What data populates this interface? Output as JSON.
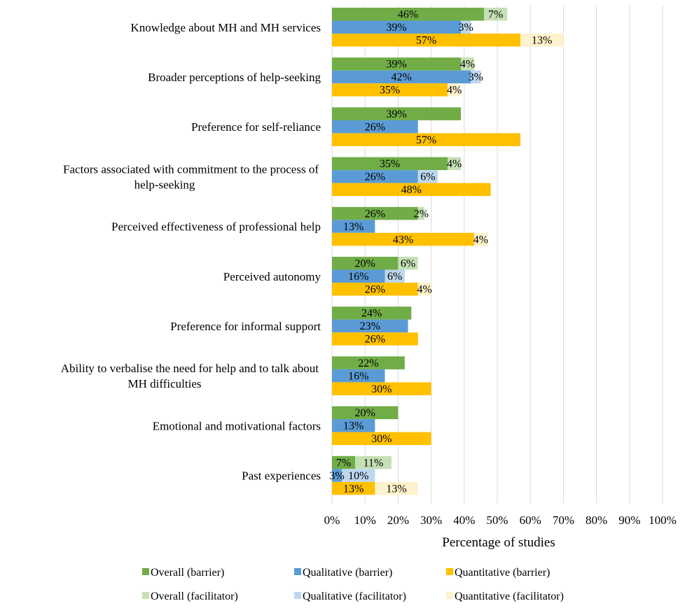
{
  "chart_data": {
    "type": "bar",
    "orientation": "horizontal",
    "stacked_pairs": true,
    "categories": [
      [
        "Knowledge about MH and MH services"
      ],
      [
        "Broader perceptions of help-seeking"
      ],
      [
        "Preference for self-reliance"
      ],
      [
        "Factors associated with commitment to the process of",
        "help-seeking"
      ],
      [
        "Perceived effectiveness of professional help"
      ],
      [
        "Perceived autonomy"
      ],
      [
        "Preference for informal support"
      ],
      [
        "Ability to verbalise the need for help and to talk about",
        "MH difficulties"
      ],
      [
        "Emotional and motivational factors"
      ],
      [
        "Past experiences"
      ]
    ],
    "series": [
      {
        "name": "Overall (barrier)",
        "color": "#70ad47",
        "values": [
          46,
          39,
          39,
          35,
          26,
          20,
          24,
          22,
          20,
          7
        ]
      },
      {
        "name": "Qualitative (barrier)",
        "color": "#5b9bd5",
        "values": [
          39,
          42,
          26,
          26,
          13,
          16,
          23,
          16,
          13,
          3
        ]
      },
      {
        "name": "Quantitative (barrier)",
        "color": "#ffc000",
        "values": [
          57,
          35,
          57,
          48,
          43,
          26,
          26,
          30,
          30,
          13
        ]
      },
      {
        "name": "Overall (facilitator)",
        "color": "#c5e0b4",
        "values": [
          7,
          4,
          null,
          4,
          2,
          6,
          null,
          null,
          null,
          11
        ]
      },
      {
        "name": "Qualitative (facilitator)",
        "color": "#bdd7ee",
        "values": [
          3,
          3,
          null,
          6,
          null,
          6,
          null,
          null,
          null,
          10
        ]
      },
      {
        "name": "Quantitative (facilitator)",
        "color": "#fff2cc",
        "values": [
          13,
          4,
          null,
          null,
          4,
          4,
          null,
          null,
          null,
          13
        ]
      }
    ],
    "xlabel": "Percentage of studies",
    "xlim": [
      0,
      100
    ],
    "xticks": [
      "0%",
      "10%",
      "20%",
      "30%",
      "40%",
      "50%",
      "60%",
      "70%",
      "80%",
      "90%",
      "100%"
    ],
    "grid": true,
    "legend_position": "bottom",
    "legend_order": [
      "Overall (barrier)",
      "Qualitative (barrier)",
      "Quantitative (barrier)",
      "Overall (facilitator)",
      "Qualitative (facilitator)",
      "Quantitative (facilitator)"
    ]
  }
}
